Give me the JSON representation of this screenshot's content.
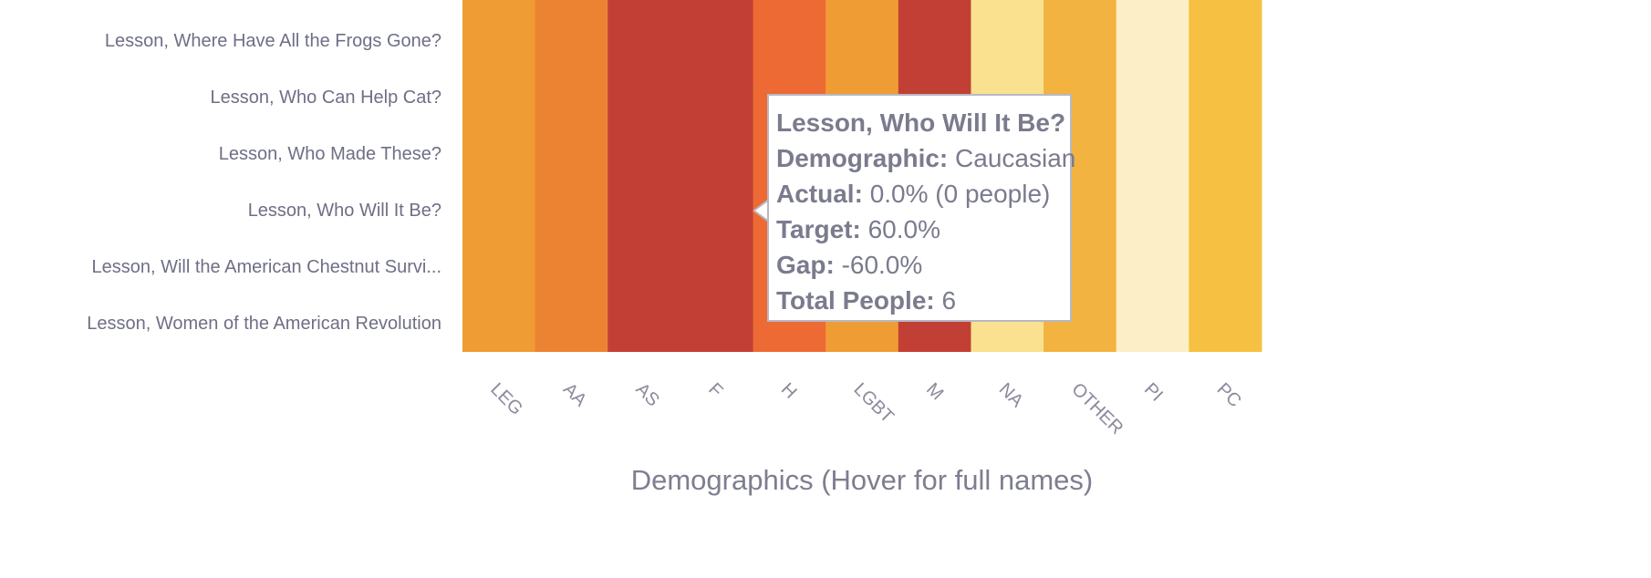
{
  "chart_data": {
    "type": "heatmap",
    "ylabel_items": [
      "Lesson, Where Have All the Frogs Gone?",
      "Lesson, Who Can Help Cat?",
      "Lesson, Who Made These?",
      "Lesson, Who Will It Be?",
      "Lesson, Will the American Chestnut Survi...",
      "Lesson, Women of the American Revolution"
    ],
    "columns": [
      "LEG",
      "AA",
      "AS",
      "F",
      "H",
      "LGBT",
      "M",
      "NA",
      "OTHER",
      "PI",
      "PC"
    ],
    "column_colors": [
      "#f09c34",
      "#ec8332",
      "#c23f35",
      "#c23f35",
      "#ed6a35",
      "#f09c34",
      "#c23f35",
      "#fae18f",
      "#f3b340",
      "#fcefc8",
      "#f6c142"
    ],
    "xlabel": "Demographics (Hover for full names)"
  },
  "tooltip": {
    "title": "Lesson, Who Will It Be?",
    "demographic_label": "Demographic:",
    "demographic_value": "Caucasian",
    "actual_label": "Actual:",
    "actual_value": "0.0% (0 people)",
    "target_label": "Target:",
    "target_value": "60.0%",
    "gap_label": "Gap:",
    "gap_value": "-60.0%",
    "total_label": "Total People:",
    "total_value": "6"
  }
}
